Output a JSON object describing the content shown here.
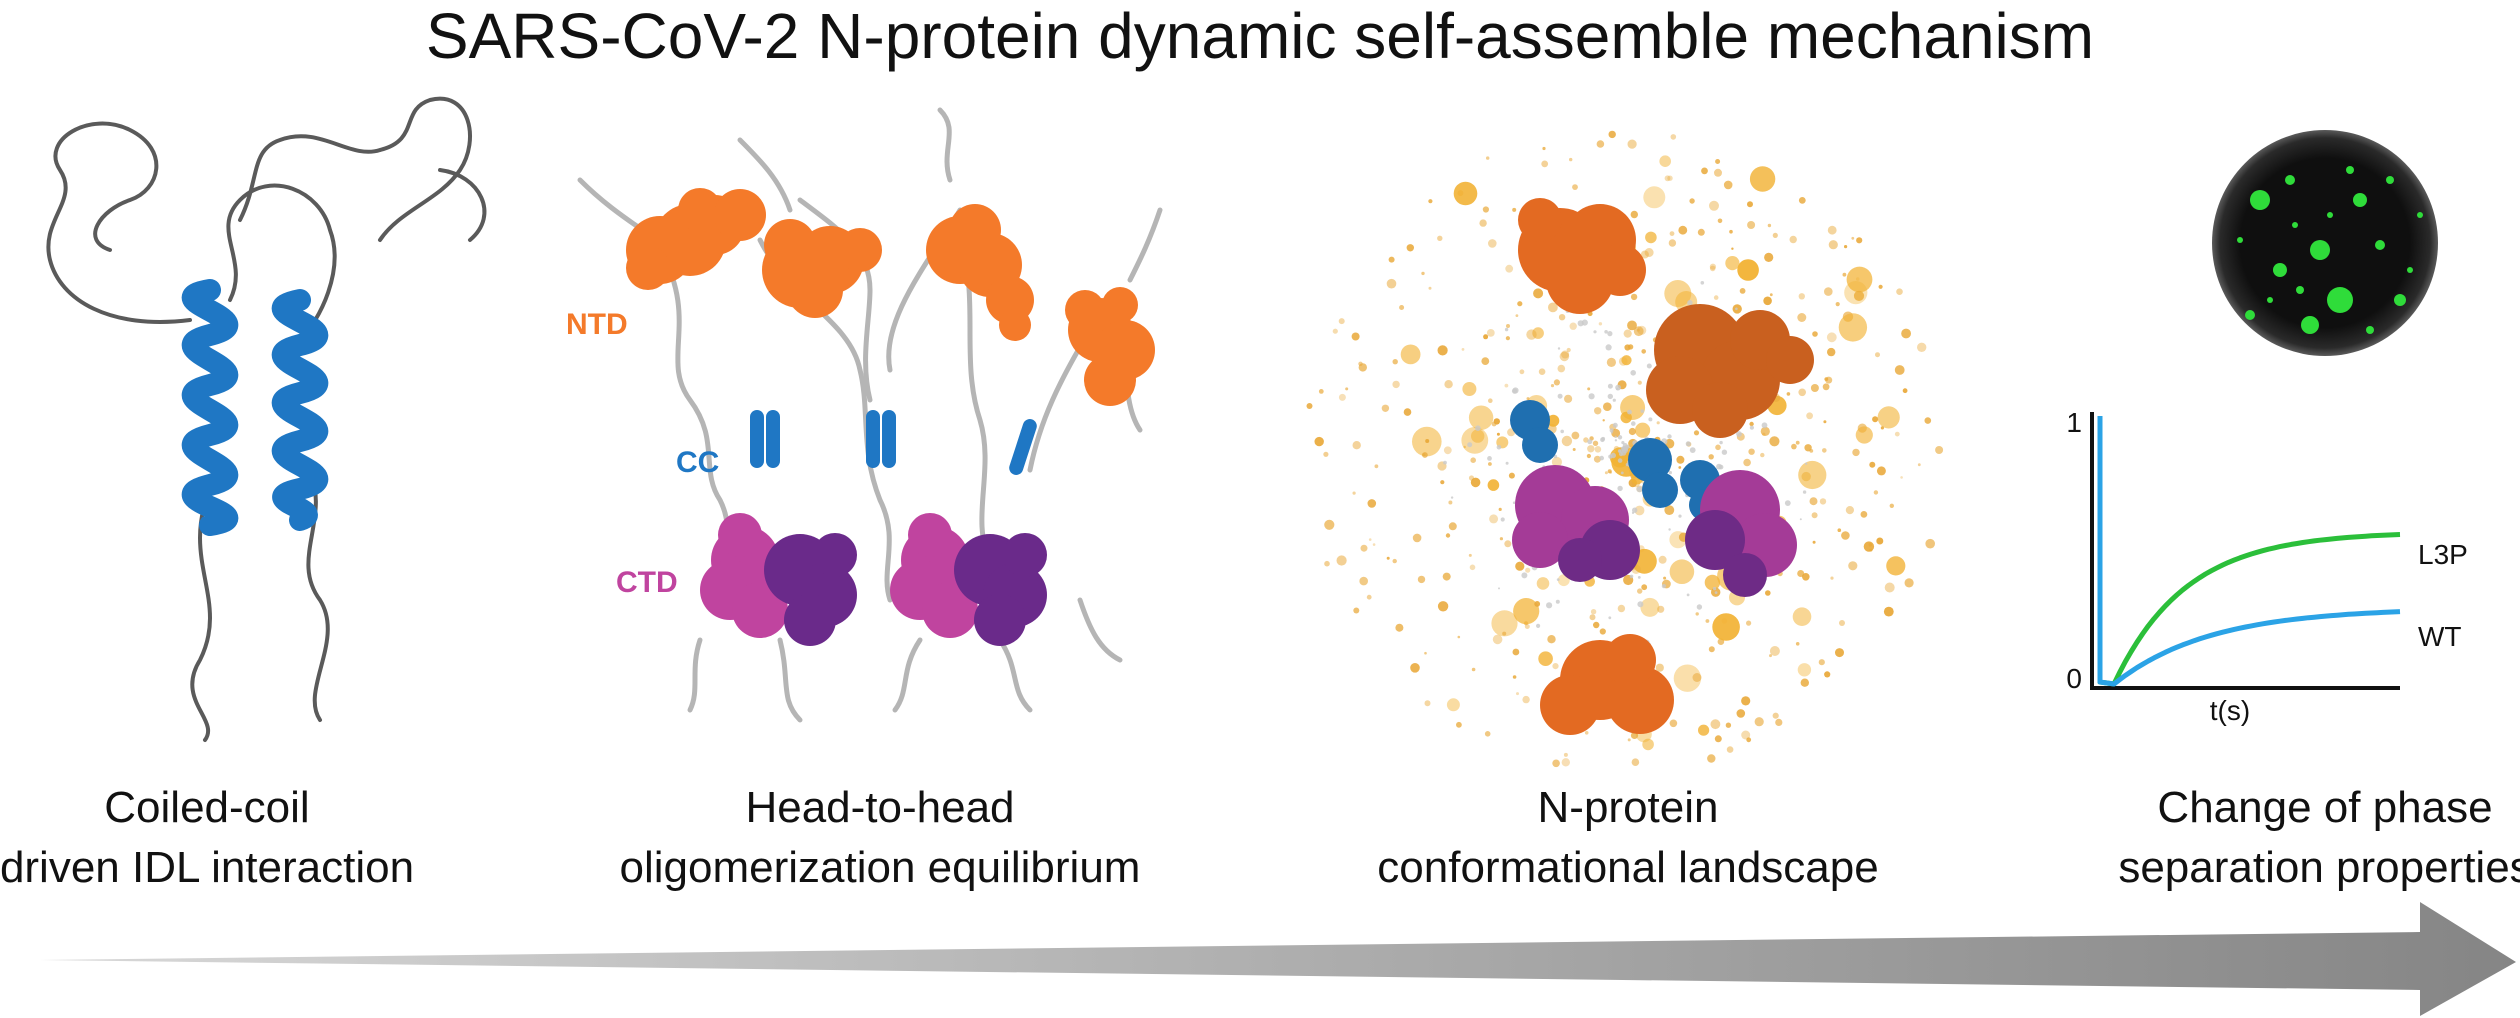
{
  "title": "SARS-CoV-2 N-protein dynamic self-assemble mechanism",
  "panels": [
    {
      "caption_line1": "Coiled-coil",
      "caption_line2": "driven IDL interaction"
    },
    {
      "caption_line1": "Head-to-head",
      "caption_line2": "oligomerization equilibrium"
    },
    {
      "caption_line1": "N-protein",
      "caption_line2": "conformational landscape"
    },
    {
      "caption_line1": "Change of phase",
      "caption_line2": "separation properties"
    }
  ],
  "domain_labels": {
    "ntd": "NTD",
    "cc": "CC",
    "ctd": "CTD"
  },
  "colors": {
    "helix_blue": "#1f77c4",
    "ntd_orange": "#f47a2a",
    "ctd_magenta": "#c0449f",
    "ctd_purple": "#6a2a8a",
    "linker_gray": "#b5b5b5",
    "droplet_green": "#2fdc3a",
    "particle_gold": "#f2b234",
    "wt_blue": "#2ba3e6",
    "l3p_green": "#2bbf3a",
    "arrow_gray": "#8a8a8a"
  },
  "chart_data": {
    "type": "line",
    "x_label": "t(s)",
    "y_ticks": [
      "1",
      "0"
    ],
    "ylim": [
      0,
      1
    ],
    "series": [
      {
        "name": "L3P",
        "color": "#2bbf3a"
      },
      {
        "name": "WT",
        "color": "#2ba3e6"
      }
    ]
  }
}
